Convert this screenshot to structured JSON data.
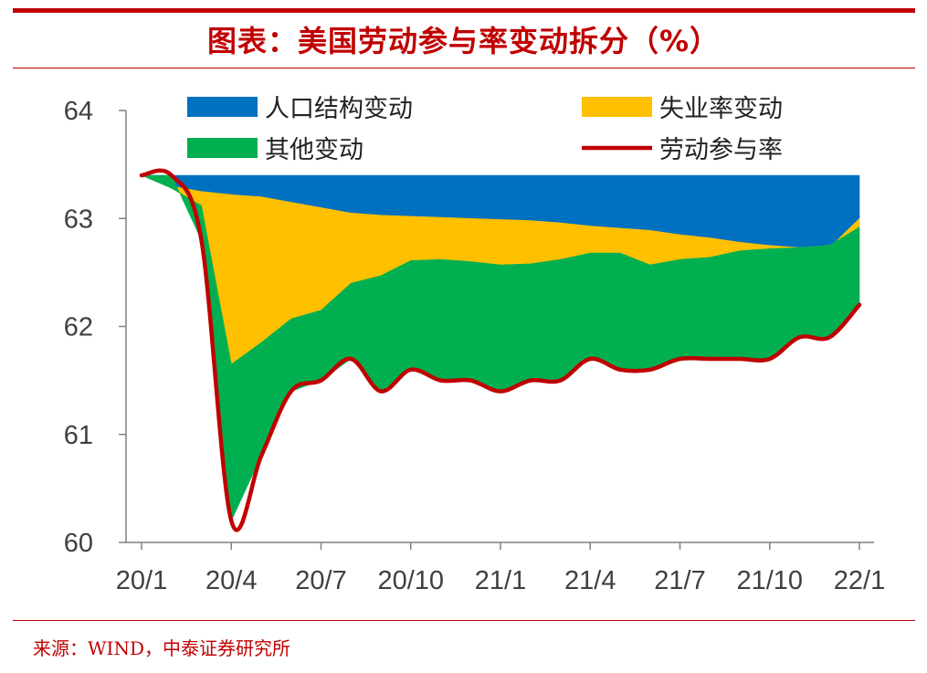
{
  "page": {
    "title": "图表：美国劳动参与率变动拆分（%）",
    "source": "来源：WIND，中泰证券研究所"
  },
  "colors": {
    "accent": "#c00000",
    "population": "#0070c0",
    "unemployment": "#ffc000",
    "other": "#00b050",
    "lfpr": "#c00000"
  },
  "chart_data": {
    "type": "area",
    "title": "图表：美国劳动参与率变动拆分（%）",
    "xlabel": "",
    "ylabel": "",
    "ylim": [
      60,
      64
    ],
    "yticks": [
      "64",
      "63",
      "62",
      "61",
      "60"
    ],
    "xticks": [
      "20/1",
      "20/4",
      "20/7",
      "20/10",
      "21/1",
      "21/4",
      "21/7",
      "21/10",
      "22/1"
    ],
    "x": [
      "20/1",
      "20/2",
      "20/3",
      "20/4",
      "20/5",
      "20/6",
      "20/7",
      "20/8",
      "20/9",
      "20/10",
      "20/11",
      "20/12",
      "21/1",
      "21/2",
      "21/3",
      "21/4",
      "21/5",
      "21/6",
      "21/7",
      "21/8",
      "21/9",
      "21/10",
      "21/11",
      "21/12",
      "22/1"
    ],
    "legend_position": "top",
    "grid": false,
    "series": [
      {
        "name": "人口结构变动",
        "kind": "area",
        "color": "#0070c0",
        "top": [
          63.4,
          63.4,
          63.4,
          63.4,
          63.4,
          63.4,
          63.4,
          63.4,
          63.4,
          63.4,
          63.4,
          63.4,
          63.4,
          63.4,
          63.4,
          63.4,
          63.4,
          63.4,
          63.4,
          63.4,
          63.4,
          63.4,
          63.4,
          63.4,
          63.4
        ],
        "bottom": [
          63.4,
          63.3,
          63.25,
          63.22,
          63.2,
          63.15,
          63.1,
          63.05,
          63.03,
          63.02,
          63.01,
          63.0,
          62.99,
          62.98,
          62.96,
          62.93,
          62.91,
          62.89,
          62.85,
          62.82,
          62.78,
          62.75,
          62.73,
          62.73,
          63.0
        ]
      },
      {
        "name": "失业率变动",
        "kind": "area",
        "color": "#ffc000",
        "top": [
          63.4,
          63.3,
          63.25,
          63.22,
          63.2,
          63.15,
          63.1,
          63.05,
          63.03,
          63.02,
          63.01,
          63.0,
          62.99,
          62.98,
          62.96,
          62.93,
          62.91,
          62.89,
          62.85,
          62.82,
          62.78,
          62.75,
          62.73,
          62.73,
          63.0
        ],
        "bottom": [
          63.4,
          63.28,
          63.12,
          61.65,
          61.85,
          62.07,
          62.15,
          62.4,
          62.47,
          62.61,
          62.62,
          62.6,
          62.57,
          62.58,
          62.62,
          62.68,
          62.68,
          62.57,
          62.62,
          62.64,
          62.7,
          62.72,
          62.73,
          62.75,
          62.92
        ]
      },
      {
        "name": "其他变动",
        "kind": "area",
        "color": "#00b050",
        "top": [
          63.4,
          63.28,
          63.12,
          61.65,
          61.85,
          62.07,
          62.15,
          62.4,
          62.47,
          62.61,
          62.62,
          62.6,
          62.57,
          62.58,
          62.62,
          62.68,
          62.68,
          62.57,
          62.62,
          62.64,
          62.7,
          62.72,
          62.73,
          62.75,
          62.92
        ],
        "bottom": [
          63.4,
          63.4,
          62.8,
          60.2,
          60.8,
          61.4,
          61.5,
          61.7,
          61.4,
          61.6,
          61.5,
          61.5,
          61.4,
          61.5,
          61.5,
          61.7,
          61.6,
          61.6,
          61.7,
          61.7,
          61.7,
          61.7,
          61.9,
          61.9,
          62.2
        ]
      },
      {
        "name": "劳动参与率",
        "kind": "line",
        "color": "#c00000",
        "values": [
          63.4,
          63.4,
          62.8,
          60.2,
          60.8,
          61.4,
          61.5,
          61.7,
          61.4,
          61.6,
          61.5,
          61.5,
          61.4,
          61.5,
          61.5,
          61.7,
          61.6,
          61.6,
          61.7,
          61.7,
          61.7,
          61.7,
          61.9,
          61.9,
          62.2
        ]
      }
    ]
  }
}
